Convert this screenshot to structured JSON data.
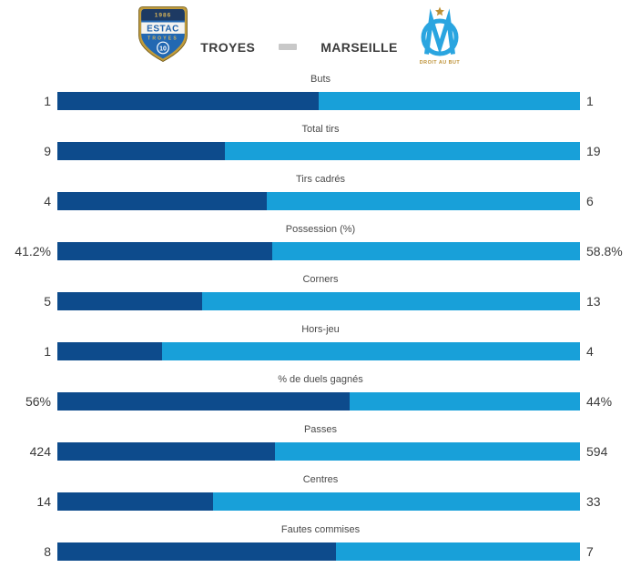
{
  "header": {
    "home_team": "TROYES",
    "away_team": "MARSEILLE",
    "home_crest": {
      "year": "1986",
      "club": "ESTAC",
      "city": "TROYES",
      "number": "10"
    },
    "away_crest": {
      "motto": "DROIT AU BUT"
    }
  },
  "colors": {
    "home_bar": "#0d4b8c",
    "away_bar": "#18a0d9",
    "team_text": "#3b3b3b",
    "label_text": "#4a4a4a",
    "value_text": "#3a3a3a",
    "separator": "#c8c8c8"
  },
  "stats": [
    {
      "label": "Buts",
      "home": "1",
      "away": "1"
    },
    {
      "label": "Total tirs",
      "home": "9",
      "away": "19"
    },
    {
      "label": "Tirs cadrés",
      "home": "4",
      "away": "6"
    },
    {
      "label": "Possession (%)",
      "home": "41.2%",
      "away": "58.8%"
    },
    {
      "label": "Corners",
      "home": "5",
      "away": "13"
    },
    {
      "label": "Hors-jeu",
      "home": "1",
      "away": "4"
    },
    {
      "label": "% de duels gagnés",
      "home": "56%",
      "away": "44%"
    },
    {
      "label": "Passes",
      "home": "424",
      "away": "594"
    },
    {
      "label": "Centres",
      "home": "14",
      "away": "33"
    },
    {
      "label": "Fautes commises",
      "home": "8",
      "away": "7"
    }
  ],
  "chart_data": {
    "type": "bar",
    "subtype": "horizontal-paired-comparison",
    "title": "TROYES – MARSEILLE match statistics",
    "categories": [
      "Buts",
      "Total tirs",
      "Tirs cadrés",
      "Possession (%)",
      "Corners",
      "Hors-jeu",
      "% de duels gagnés",
      "Passes",
      "Centres",
      "Fautes commises"
    ],
    "series": [
      {
        "name": "TROYES",
        "color": "#0d4b8c",
        "values": [
          1,
          9,
          4,
          41.2,
          5,
          1,
          56,
          424,
          14,
          8
        ]
      },
      {
        "name": "MARSEILLE",
        "color": "#18a0d9",
        "values": [
          1,
          19,
          6,
          58.8,
          13,
          4,
          44,
          594,
          33,
          7
        ]
      }
    ],
    "value_labels": {
      "TROYES": [
        "1",
        "9",
        "4",
        "41.2%",
        "5",
        "1",
        "56%",
        "424",
        "14",
        "8"
      ],
      "MARSEILLE": [
        "1",
        "19",
        "6",
        "58.8%",
        "13",
        "4",
        "44%",
        "594",
        "33",
        "7"
      ]
    },
    "layout": "each row is one full-width bar split left/right proportionally to home/(home+away); home value label on the left edge, away value label on the right edge, category label centered above"
  }
}
